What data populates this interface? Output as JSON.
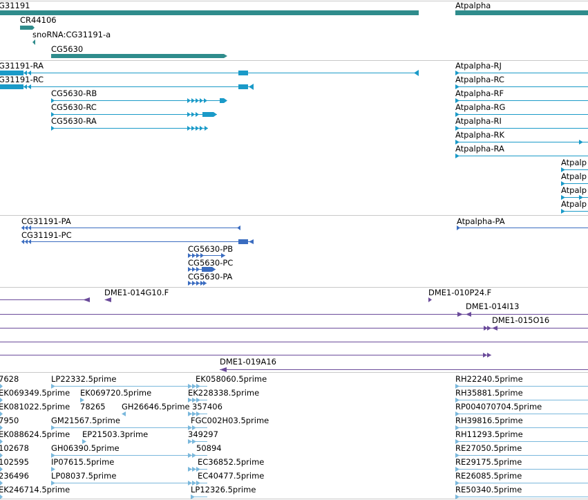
{
  "colors": {
    "gene": "#2f8c8c",
    "transcript": "#1a9ac8",
    "protein": "#3a6cc0",
    "clone": "#6a4a9a",
    "est": "#7ab8dc",
    "divider": "#c8c8c8"
  },
  "tracks": [
    {
      "id": "genes",
      "color": "#2f8c8c",
      "features": [
        {
          "label": "G31191"
        },
        {
          "label": "Atpalpha"
        },
        {
          "label": "CR44106"
        },
        {
          "label": "snoRNA:CG31191-a"
        },
        {
          "label": "CG5630"
        }
      ]
    },
    {
      "id": "transcripts",
      "color": "#1a9ac8",
      "features": [
        {
          "label": "G31191-RA"
        },
        {
          "label": "G31191-RC"
        },
        {
          "label": "CG5630-RB"
        },
        {
          "label": "CG5630-RC"
        },
        {
          "label": "CG5630-RA"
        },
        {
          "label": "Atpalpha-RJ"
        },
        {
          "label": "Atpalpha-RC"
        },
        {
          "label": "Atpalpha-RF"
        },
        {
          "label": "Atpalpha-RG"
        },
        {
          "label": "Atpalpha-RI"
        },
        {
          "label": "Atpalpha-RK"
        },
        {
          "label": "Atpalpha-RA"
        },
        {
          "label": "Atpalp"
        },
        {
          "label": "Atpalp"
        },
        {
          "label": "Atpalp"
        },
        {
          "label": "Atpalp"
        }
      ]
    },
    {
      "id": "proteins",
      "color": "#3a6cc0",
      "features": [
        {
          "label": "CG31191-PA"
        },
        {
          "label": "CG31191-PC"
        },
        {
          "label": "CG5630-PB"
        },
        {
          "label": "CG5630-PC"
        },
        {
          "label": "CG5630-PA"
        },
        {
          "label": "Atpalpha-PA"
        }
      ]
    },
    {
      "id": "clones",
      "color": "#6a4a9a",
      "features": [
        {
          "label": "DME1-014G10.F"
        },
        {
          "label": "DME1-010P24.F"
        },
        {
          "label": "DME1-014I13"
        },
        {
          "label": "DME1-015O16"
        },
        {
          "label": "DME1-019A16"
        }
      ]
    },
    {
      "id": "ests",
      "color": "#7ab8dc",
      "features": [
        {
          "label": "7628"
        },
        {
          "label": "LP22332.5prime"
        },
        {
          "label": "EK058060.5prime"
        },
        {
          "label": "RH22240.5prime"
        },
        {
          "label": "EK069349.5prime"
        },
        {
          "label": "EK069720.5prime"
        },
        {
          "label": "EK228338.5prime"
        },
        {
          "label": "RH35881.5prime"
        },
        {
          "label": "EK081022.5prime"
        },
        {
          "label": "78265"
        },
        {
          "label": "GH26646.5prime"
        },
        {
          "label": "357406"
        },
        {
          "label": "RP004070704.5prime"
        },
        {
          "label": "7950"
        },
        {
          "label": "GM21567.5prime"
        },
        {
          "label": "FGC002H03.5prime"
        },
        {
          "label": "RH39816.5prime"
        },
        {
          "label": "EK088624.5prime"
        },
        {
          "label": "EP21503.3prime"
        },
        {
          "label": "349297"
        },
        {
          "label": "RH11293.5prime"
        },
        {
          "label": "102678"
        },
        {
          "label": "GH06390.5prime"
        },
        {
          "label": "50894"
        },
        {
          "label": "RE27050.5prime"
        },
        {
          "label": "102595"
        },
        {
          "label": "IP07615.5prime"
        },
        {
          "label": "EC36852.5prime"
        },
        {
          "label": "RE29175.5prime"
        },
        {
          "label": "236496"
        },
        {
          "label": "LP08037.5prime"
        },
        {
          "label": "EC40477.5prime"
        },
        {
          "label": "RE26085.5prime"
        },
        {
          "label": "EK246714.5prime"
        },
        {
          "label": "LP12326.5prime"
        },
        {
          "label": "RE50340.5prime"
        }
      ]
    }
  ]
}
